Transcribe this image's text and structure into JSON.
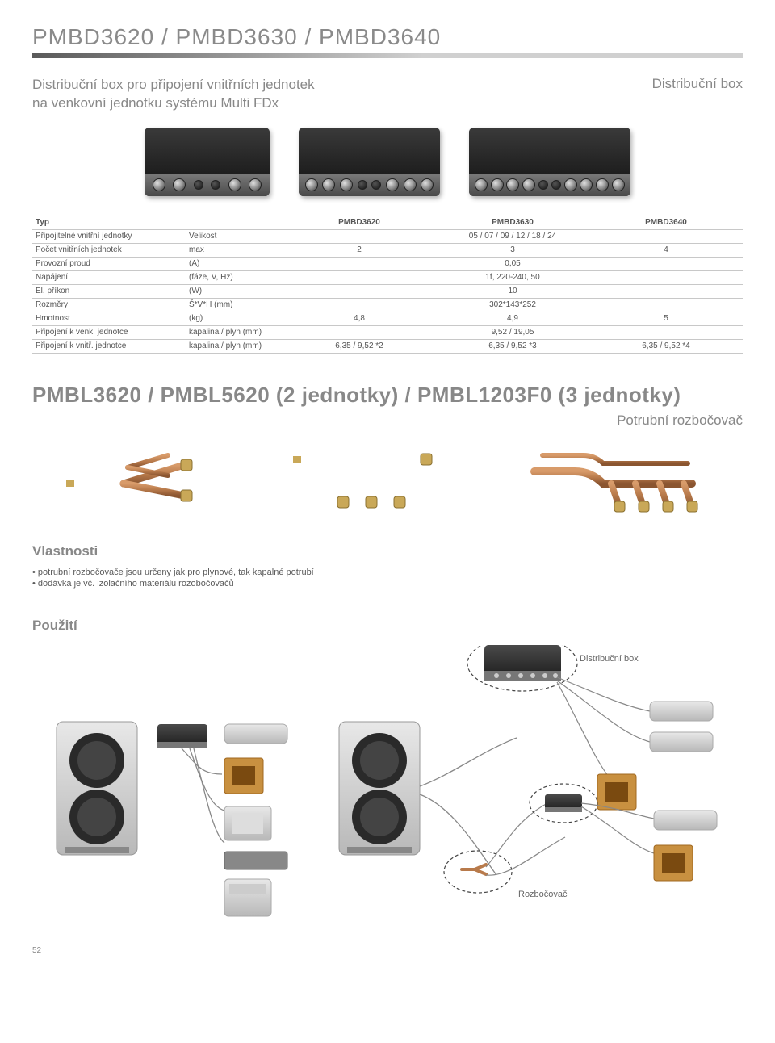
{
  "header": {
    "title": "PMBD3620 / PMBD3630 / PMBD3640",
    "subtitle_left_line1": "Distribuční box pro připojení vnitřních jednotek",
    "subtitle_left_line2": "na venkovní jednotku systému Multi FDx",
    "subtitle_right": "Distribuční box"
  },
  "table": {
    "columns": [
      "PMBD3620",
      "PMBD3630",
      "PMBD3640"
    ],
    "rows": [
      {
        "label": "Typ",
        "unit": "",
        "values": [
          "PMBD3620",
          "PMBD3630",
          "PMBD3640"
        ],
        "header": true
      },
      {
        "label": "Připojitelné vnitřní jednotky",
        "unit": "Velikost",
        "values": [
          "05 / 07 / 09 / 12 / 18 / 24"
        ],
        "span": 3
      },
      {
        "label": "Počet vnitřních jednotek",
        "unit": "max",
        "values": [
          "2",
          "3",
          "4"
        ]
      },
      {
        "label": "Provozní proud",
        "unit": "(A)",
        "values": [
          "0,05"
        ],
        "span": 3
      },
      {
        "label": "Napájení",
        "unit": "(fáze, V, Hz)",
        "values": [
          "1f, 220-240, 50"
        ],
        "span": 3
      },
      {
        "label": "El. příkon",
        "unit": "(W)",
        "values": [
          "10"
        ],
        "span": 3
      },
      {
        "label": "Rozměry",
        "unit": "Š*V*H (mm)",
        "values": [
          "302*143*252"
        ],
        "span": 3
      },
      {
        "label": "Hmotnost",
        "unit": "(kg)",
        "values": [
          "4,8",
          "4,9",
          "5"
        ]
      },
      {
        "label": "Připojení k venk. jednotce",
        "unit": "kapalina / plyn (mm)",
        "values": [
          "9,52 / 19,05"
        ],
        "span": 3
      },
      {
        "label": "Připojení k vnitř. jednotce",
        "unit": "kapalina / plyn (mm)",
        "values": [
          "6,35 / 9,52 *2",
          "6,35 / 9,52 *3",
          "6,35 / 9,52 *4"
        ]
      }
    ]
  },
  "section2": {
    "title": "PMBL3620 / PMBL5620 (2 jednotky) / PMBL1203F0 (3 jednotky)",
    "subtitle": "Potrubní rozbočovač",
    "props_heading": "Vlastnosti",
    "props": [
      "potrubní rozbočovače jsou určeny jak pro plynové, tak kapalné potrubí",
      "dodávka je vč. izolačního materiálu rozobočovačů"
    ],
    "usage_heading": "Použití",
    "label_distbox": "Distribuční box",
    "label_rozbocovac": "Rozbočovač"
  },
  "colors": {
    "copper": "#b87a4b",
    "copper_dark": "#8a5530",
    "brass": "#c9a858",
    "grey_unit": "#cfcfcf",
    "grey_unit_dark": "#9a9a9a",
    "fan_dark": "#2a2a2a",
    "ellipse_line": "#444444",
    "ellipse_dash": "4 3",
    "page_text_grey": "#888888"
  },
  "page_number": "52"
}
